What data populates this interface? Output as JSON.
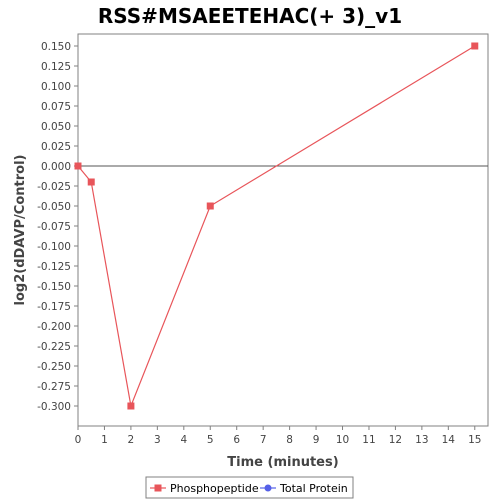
{
  "chart_data": {
    "type": "line",
    "title": "RSS#MSAEETEHAC(+ 3)_v1",
    "xlabel": "Time (minutes)",
    "ylabel": "log2(dDAVP/Control)",
    "xlim": [
      0,
      15.5
    ],
    "ylim": [
      -0.325,
      0.165
    ],
    "x_ticks": [
      0,
      1,
      2,
      3,
      4,
      5,
      6,
      7,
      8,
      9,
      10,
      11,
      12,
      13,
      14,
      15
    ],
    "y_ticks": [
      0.15,
      0.125,
      0.1,
      0.075,
      0.05,
      0.025,
      0.0,
      -0.025,
      -0.05,
      -0.075,
      -0.1,
      -0.125,
      -0.15,
      -0.175,
      -0.2,
      -0.225,
      -0.25,
      -0.275,
      -0.3
    ],
    "y_tick_labels": [
      "0.150",
      "0.125",
      "0.100",
      "0.075",
      "0.050",
      "0.025",
      "0.000",
      "-0.025",
      "-0.050",
      "-0.075",
      "-0.100",
      "-0.125",
      "-0.150",
      "-0.175",
      "-0.200",
      "-0.225",
      "-0.250",
      "-0.275",
      "-0.300"
    ],
    "zero_line": 0,
    "grid": false,
    "legend_position": "bottom",
    "series": [
      {
        "name": "Phosphopeptide",
        "color": "#e8555a",
        "marker": "square",
        "x": [
          0,
          0.5,
          2,
          5,
          15
        ],
        "y": [
          0.0,
          -0.02,
          -0.3,
          -0.05,
          0.15
        ]
      },
      {
        "name": "Total Protein",
        "color": "#5560e8",
        "marker": "circle",
        "x": [],
        "y": []
      }
    ]
  }
}
